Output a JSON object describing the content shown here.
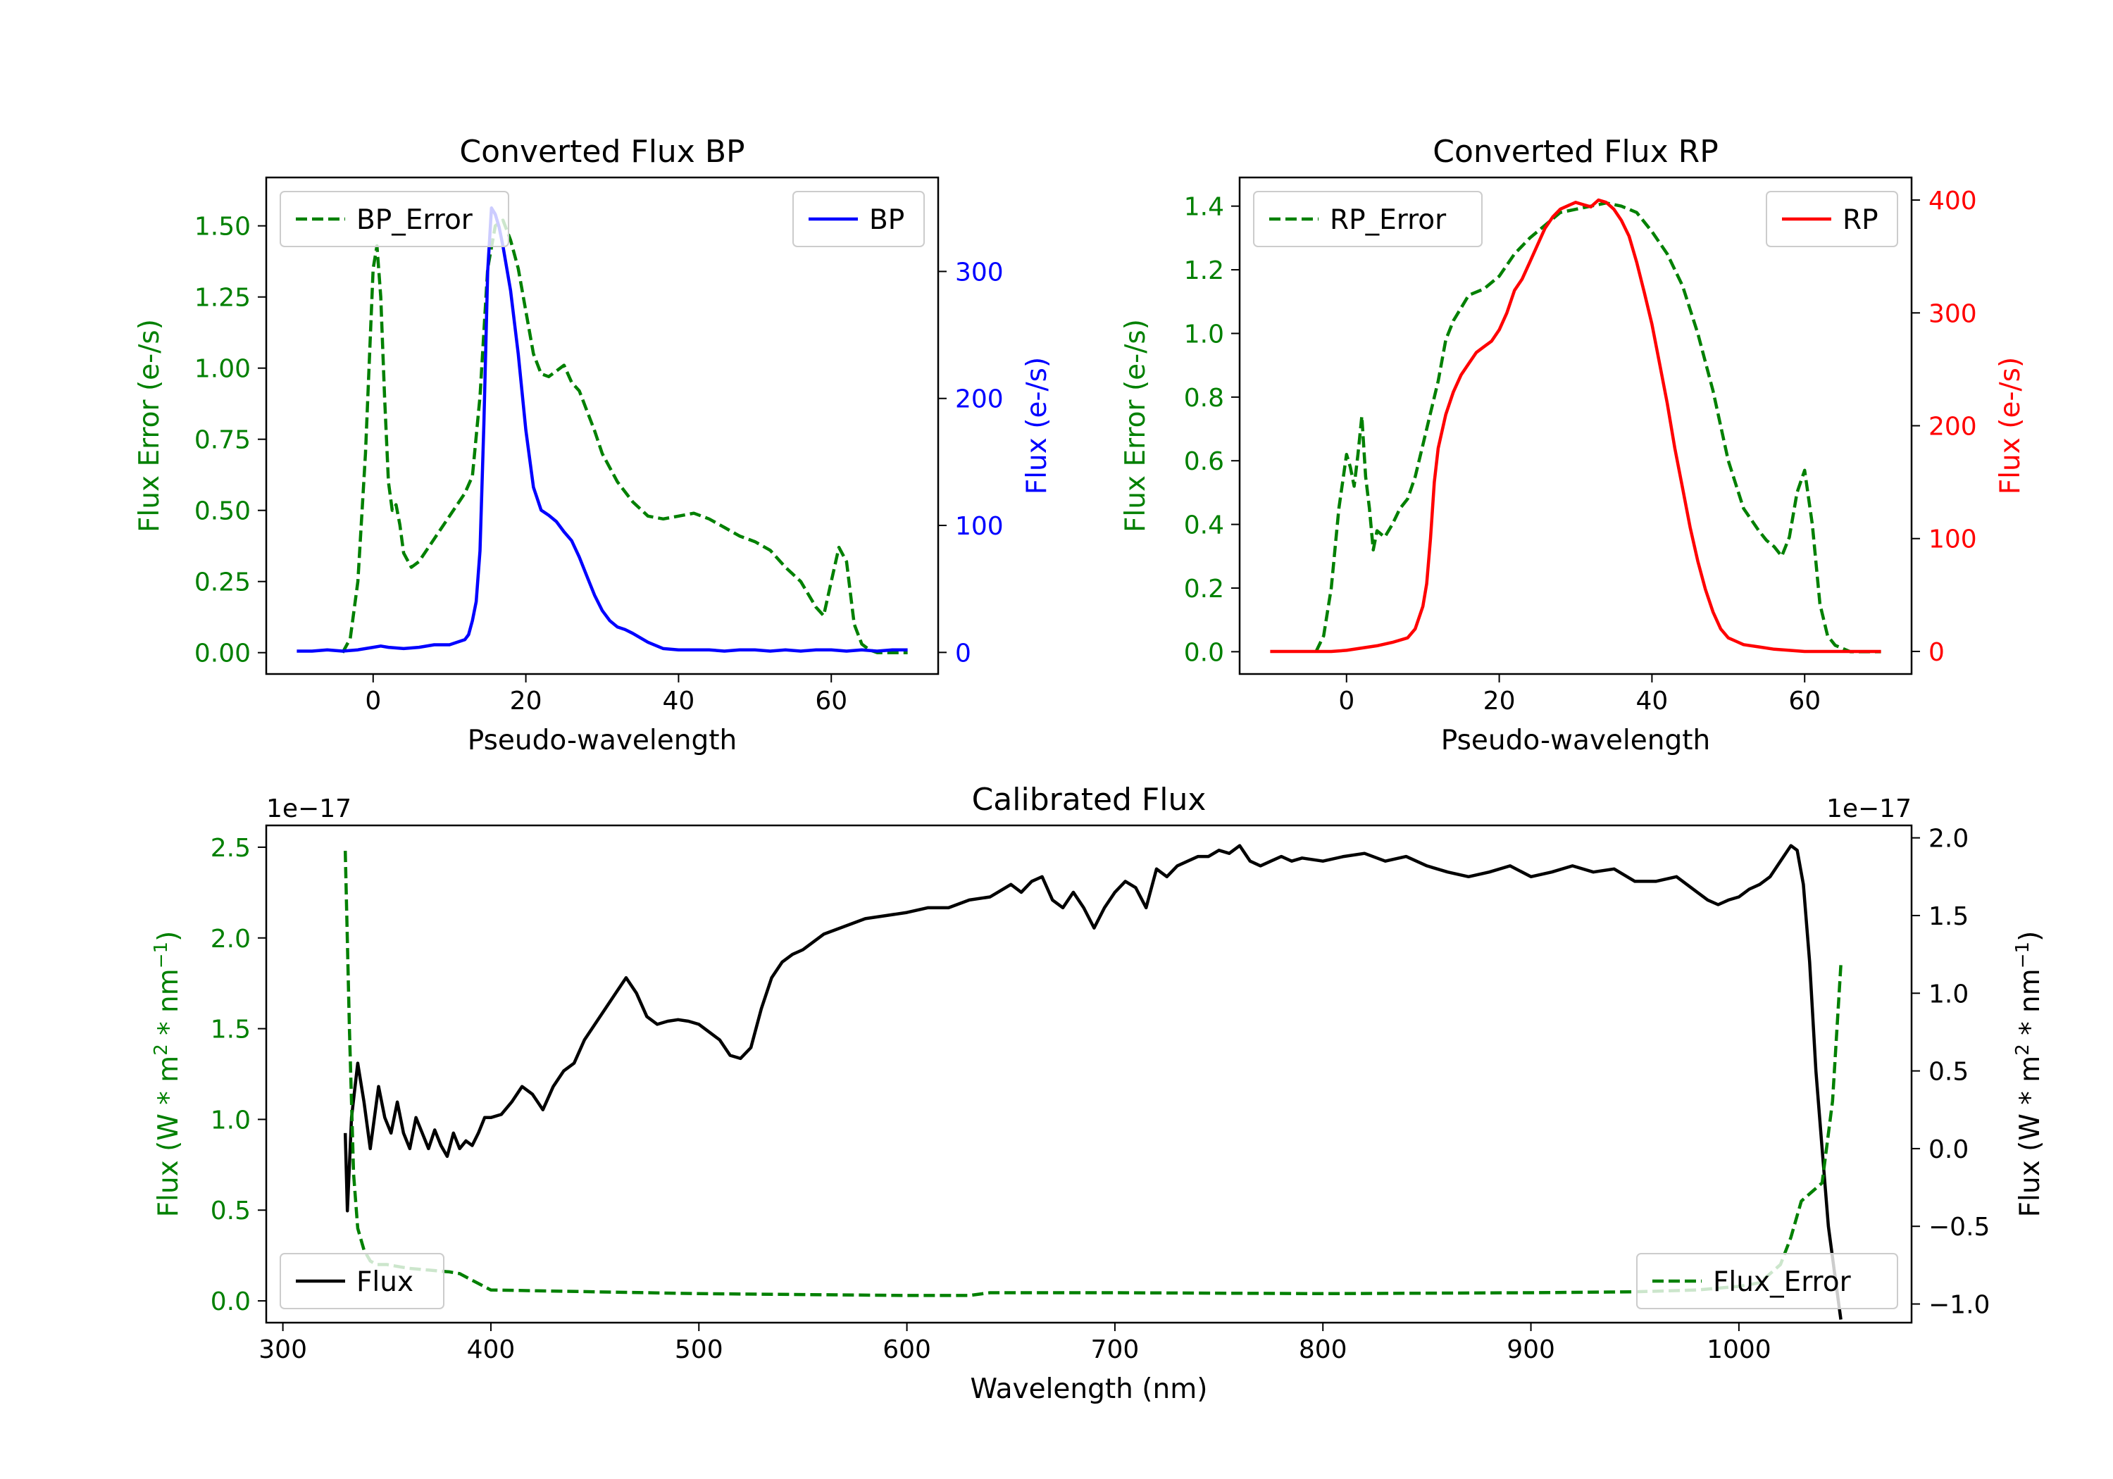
{
  "chart_data": [
    {
      "type": "line",
      "title": "Converted Flux BP",
      "xlabel": "Pseudo-wavelength",
      "xlim": [
        -14,
        74
      ],
      "xticks": [
        0,
        20,
        40,
        60
      ],
      "axes": {
        "left": {
          "label": "Flux Error (e-/s)",
          "ylim": [
            -0.075,
            1.67
          ],
          "ticks": [
            "0.00",
            "0.25",
            "0.50",
            "0.75",
            "1.00",
            "1.25",
            "1.50"
          ],
          "tick_values": [
            0,
            0.25,
            0.5,
            0.75,
            1.0,
            1.25,
            1.5
          ],
          "color": "#008000"
        },
        "right": {
          "label": "Flux (e-/s)",
          "ylim": [
            -17,
            374
          ],
          "ticks": [
            "0",
            "100",
            "200",
            "300"
          ],
          "tick_values": [
            0,
            100,
            200,
            300
          ],
          "color": "#0000ff"
        }
      },
      "series": [
        {
          "name": "BP_Error",
          "axis": "left",
          "color": "#008000",
          "style": "dashed",
          "x": [
            -4,
            -3,
            -2,
            -1,
            0,
            0.5,
            1,
            1.5,
            2,
            2.5,
            3,
            3.5,
            4,
            5,
            6,
            8,
            10,
            12,
            13,
            14,
            15,
            16,
            17,
            18,
            19,
            20,
            21,
            22,
            23,
            24,
            25,
            26,
            27,
            28,
            29,
            30,
            32,
            34,
            36,
            38,
            40,
            42,
            44,
            46,
            48,
            50,
            52,
            54,
            56,
            58,
            59,
            60,
            61,
            62,
            63,
            64,
            65,
            66,
            67,
            68,
            69,
            70
          ],
          "y": [
            0,
            0.05,
            0.25,
            0.7,
            1.35,
            1.43,
            1.25,
            0.9,
            0.6,
            0.5,
            0.52,
            0.45,
            0.35,
            0.3,
            0.32,
            0.4,
            0.48,
            0.56,
            0.62,
            0.9,
            1.35,
            1.5,
            1.52,
            1.45,
            1.35,
            1.2,
            1.05,
            0.98,
            0.97,
            0.99,
            1.01,
            0.95,
            0.92,
            0.85,
            0.78,
            0.7,
            0.6,
            0.53,
            0.48,
            0.47,
            0.48,
            0.49,
            0.47,
            0.44,
            0.41,
            0.39,
            0.36,
            0.3,
            0.25,
            0.16,
            0.13,
            0.25,
            0.37,
            0.32,
            0.1,
            0.03,
            0.01,
            0,
            0,
            0,
            0,
            0
          ]
        },
        {
          "name": "BP",
          "axis": "right",
          "color": "#0000ff",
          "style": "solid",
          "x": [
            -10,
            -8,
            -6,
            -4,
            -2,
            0,
            1,
            2,
            4,
            6,
            8,
            10,
            11,
            12,
            12.5,
            13,
            13.5,
            14,
            14.5,
            15,
            15.5,
            16,
            16.5,
            17,
            18,
            19,
            20,
            21,
            22,
            23,
            24,
            25,
            26,
            27,
            28,
            29,
            30,
            31,
            32,
            33,
            34,
            36,
            38,
            40,
            42,
            44,
            46,
            48,
            50,
            52,
            54,
            56,
            58,
            60,
            62,
            64,
            66,
            68,
            70
          ],
          "y": [
            1,
            1,
            2,
            1,
            2,
            4,
            5,
            4,
            3,
            4,
            6,
            6,
            8,
            10,
            14,
            25,
            40,
            80,
            180,
            300,
            350,
            345,
            335,
            320,
            285,
            235,
            175,
            130,
            112,
            108,
            103,
            95,
            88,
            75,
            60,
            45,
            33,
            25,
            20,
            18,
            15,
            8,
            3,
            2,
            2,
            2,
            1,
            2,
            2,
            1,
            2,
            1,
            2,
            2,
            1,
            2,
            1,
            2,
            2
          ]
        }
      ],
      "legend": [
        {
          "label": "BP_Error",
          "position": "top-left"
        },
        {
          "label": "BP",
          "position": "top-right"
        }
      ]
    },
    {
      "type": "line",
      "title": "Converted Flux RP",
      "xlabel": "Pseudo-wavelength",
      "xlim": [
        -14,
        74
      ],
      "xticks": [
        0,
        20,
        40,
        60
      ],
      "axes": {
        "left": {
          "label": "Flux Error (e-/s)",
          "ylim": [
            -0.07,
            1.49
          ],
          "ticks": [
            "0.0",
            "0.2",
            "0.4",
            "0.6",
            "0.8",
            "1.0",
            "1.2",
            "1.4"
          ],
          "tick_values": [
            0,
            0.2,
            0.4,
            0.6,
            0.8,
            1.0,
            1.2,
            1.4
          ],
          "color": "#008000"
        },
        "right": {
          "label": "Flux (e-/s)",
          "ylim": [
            -20,
            420
          ],
          "ticks": [
            "0",
            "100",
            "200",
            "300",
            "400"
          ],
          "tick_values": [
            0,
            100,
            200,
            300,
            400
          ],
          "color": "#ff0000"
        }
      },
      "series": [
        {
          "name": "RP_Error",
          "axis": "left",
          "color": "#008000",
          "style": "dashed",
          "x": [
            -4,
            -3,
            -2,
            -1,
            0,
            0.5,
            1,
            1.5,
            2,
            2.5,
            3,
            3.5,
            4,
            5,
            6,
            7,
            8,
            9,
            10,
            11,
            12,
            13,
            14,
            15,
            16,
            18,
            20,
            22,
            24,
            26,
            28,
            30,
            32,
            34,
            36,
            38,
            40,
            42,
            44,
            46,
            48,
            50,
            52,
            54,
            55,
            56,
            57,
            58,
            59,
            60,
            61,
            62,
            63,
            64,
            65,
            66,
            67,
            68,
            70
          ],
          "y": [
            0,
            0.05,
            0.2,
            0.45,
            0.62,
            0.58,
            0.52,
            0.62,
            0.74,
            0.55,
            0.45,
            0.32,
            0.38,
            0.36,
            0.4,
            0.45,
            0.48,
            0.55,
            0.65,
            0.75,
            0.85,
            0.98,
            1.04,
            1.08,
            1.12,
            1.14,
            1.18,
            1.25,
            1.3,
            1.34,
            1.38,
            1.39,
            1.4,
            1.41,
            1.4,
            1.38,
            1.32,
            1.25,
            1.15,
            1.0,
            0.82,
            0.6,
            0.45,
            0.38,
            0.35,
            0.33,
            0.3,
            0.36,
            0.5,
            0.57,
            0.4,
            0.15,
            0.05,
            0.02,
            0.01,
            0,
            0,
            0,
            0
          ]
        },
        {
          "name": "RP",
          "axis": "right",
          "color": "#ff0000",
          "style": "solid",
          "x": [
            -10,
            -8,
            -6,
            -4,
            -2,
            0,
            2,
            4,
            6,
            8,
            9,
            10,
            10.5,
            11,
            11.5,
            12,
            13,
            14,
            15,
            16,
            17,
            18,
            19,
            20,
            21,
            22,
            23,
            24,
            25,
            26,
            27,
            28,
            29,
            30,
            31,
            32,
            33,
            34,
            35,
            36,
            37,
            38,
            39,
            40,
            41,
            42,
            43,
            44,
            45,
            46,
            47,
            48,
            49,
            50,
            51,
            52,
            54,
            56,
            58,
            60,
            62,
            64,
            66,
            68,
            70
          ],
          "y": [
            0,
            0,
            0,
            0,
            0,
            1,
            3,
            5,
            8,
            12,
            20,
            40,
            60,
            100,
            150,
            180,
            210,
            230,
            245,
            255,
            265,
            270,
            275,
            285,
            300,
            320,
            330,
            345,
            360,
            375,
            385,
            392,
            395,
            398,
            396,
            394,
            400,
            398,
            392,
            382,
            368,
            345,
            318,
            290,
            255,
            220,
            180,
            145,
            110,
            80,
            55,
            35,
            20,
            12,
            9,
            6,
            4,
            2,
            1,
            0,
            0,
            0,
            0,
            0,
            0
          ]
        }
      ],
      "legend": [
        {
          "label": "RP_Error",
          "position": "top-left"
        },
        {
          "label": "RP",
          "position": "top-right"
        }
      ]
    },
    {
      "type": "line",
      "title": "Calibrated Flux",
      "xlabel": "Wavelength (nm)",
      "xlim": [
        292,
        1083
      ],
      "xticks": [
        300,
        400,
        500,
        600,
        700,
        800,
        900,
        1000
      ],
      "axes": {
        "left": {
          "label": "Flux (W * m2 * nm−1)",
          "offset_text": "1e−17",
          "ylim": [
            -0.12,
            2.62
          ],
          "ticks": [
            "0.0",
            "0.5",
            "1.0",
            "1.5",
            "2.0",
            "2.5"
          ],
          "tick_values": [
            0,
            0.5,
            1.0,
            1.5,
            2.0,
            2.5
          ],
          "color": "#008000"
        },
        "right": {
          "label": "Flux (W * m2 * nm−1)",
          "offset_text": "1e−17",
          "ylim": [
            -1.12,
            2.08
          ],
          "ticks": [
            "−1.0",
            "−0.5",
            "0.0",
            "0.5",
            "1.0",
            "1.5",
            "2.0"
          ],
          "tick_values": [
            -1.0,
            -0.5,
            0.0,
            0.5,
            1.0,
            1.5,
            2.0
          ],
          "color": "#000000"
        }
      },
      "series": [
        {
          "name": "Flux",
          "axis": "right",
          "color": "#000000",
          "style": "solid",
          "x": [
            330,
            331,
            333,
            336,
            339,
            342,
            346,
            349,
            352,
            355,
            358,
            361,
            364,
            367,
            370,
            373,
            376,
            379,
            382,
            385,
            388,
            391,
            394,
            397,
            400,
            405,
            410,
            415,
            420,
            425,
            430,
            435,
            440,
            445,
            450,
            455,
            460,
            465,
            470,
            475,
            480,
            485,
            490,
            495,
            500,
            505,
            510,
            515,
            520,
            525,
            530,
            535,
            540,
            545,
            550,
            560,
            570,
            580,
            590,
            600,
            610,
            620,
            630,
            640,
            650,
            655,
            660,
            665,
            670,
            675,
            680,
            685,
            690,
            695,
            700,
            705,
            710,
            715,
            720,
            725,
            730,
            735,
            740,
            745,
            750,
            755,
            760,
            765,
            770,
            775,
            780,
            785,
            790,
            800,
            810,
            820,
            830,
            840,
            850,
            860,
            870,
            880,
            890,
            900,
            910,
            920,
            930,
            940,
            950,
            960,
            970,
            980,
            985,
            990,
            995,
            1000,
            1005,
            1010,
            1015,
            1020,
            1025,
            1028,
            1031,
            1034,
            1037,
            1040,
            1043,
            1046,
            1049
          ],
          "y": [
            0.1,
            -0.4,
            0.2,
            0.55,
            0.3,
            0.0,
            0.4,
            0.2,
            0.1,
            0.3,
            0.1,
            0.0,
            0.2,
            0.1,
            0.0,
            0.12,
            0.02,
            -0.05,
            0.1,
            0.0,
            0.05,
            0.02,
            0.1,
            0.2,
            0.2,
            0.22,
            0.3,
            0.4,
            0.35,
            0.25,
            0.4,
            0.5,
            0.55,
            0.7,
            0.8,
            0.9,
            1.0,
            1.1,
            1.0,
            0.85,
            0.8,
            0.82,
            0.83,
            0.82,
            0.8,
            0.75,
            0.7,
            0.6,
            0.58,
            0.65,
            0.9,
            1.1,
            1.2,
            1.25,
            1.28,
            1.38,
            1.43,
            1.48,
            1.5,
            1.52,
            1.55,
            1.55,
            1.6,
            1.62,
            1.7,
            1.65,
            1.72,
            1.75,
            1.6,
            1.55,
            1.65,
            1.55,
            1.42,
            1.55,
            1.65,
            1.72,
            1.68,
            1.55,
            1.8,
            1.75,
            1.82,
            1.85,
            1.88,
            1.88,
            1.92,
            1.9,
            1.95,
            1.85,
            1.82,
            1.85,
            1.88,
            1.85,
            1.87,
            1.85,
            1.88,
            1.9,
            1.85,
            1.88,
            1.82,
            1.78,
            1.75,
            1.78,
            1.82,
            1.75,
            1.78,
            1.82,
            1.78,
            1.8,
            1.72,
            1.72,
            1.75,
            1.65,
            1.6,
            1.57,
            1.6,
            1.62,
            1.67,
            1.7,
            1.75,
            1.85,
            1.95,
            1.92,
            1.7,
            1.2,
            0.5,
            0.0,
            -0.5,
            -0.8,
            -1.1
          ]
        },
        {
          "name": "Flux_Error",
          "axis": "left",
          "color": "#008000",
          "style": "dashed",
          "x": [
            330,
            332,
            334,
            336,
            339,
            342,
            345,
            350,
            360,
            370,
            380,
            385,
            390,
            400,
            450,
            500,
            550,
            600,
            630,
            640,
            700,
            800,
            900,
            950,
            980,
            1000,
            1010,
            1015,
            1020,
            1025,
            1030,
            1035,
            1040,
            1045,
            1049
          ],
          "y": [
            2.48,
            1.5,
            0.7,
            0.4,
            0.28,
            0.22,
            0.2,
            0.2,
            0.18,
            0.17,
            0.16,
            0.15,
            0.12,
            0.06,
            0.05,
            0.04,
            0.035,
            0.03,
            0.03,
            0.045,
            0.045,
            0.04,
            0.045,
            0.05,
            0.06,
            0.08,
            0.1,
            0.15,
            0.2,
            0.35,
            0.55,
            0.6,
            0.65,
            1.1,
            1.85
          ]
        }
      ],
      "legend": [
        {
          "label": "Flux",
          "position": "bottom-left"
        },
        {
          "label": "Flux_Error",
          "position": "bottom-right"
        }
      ]
    }
  ]
}
